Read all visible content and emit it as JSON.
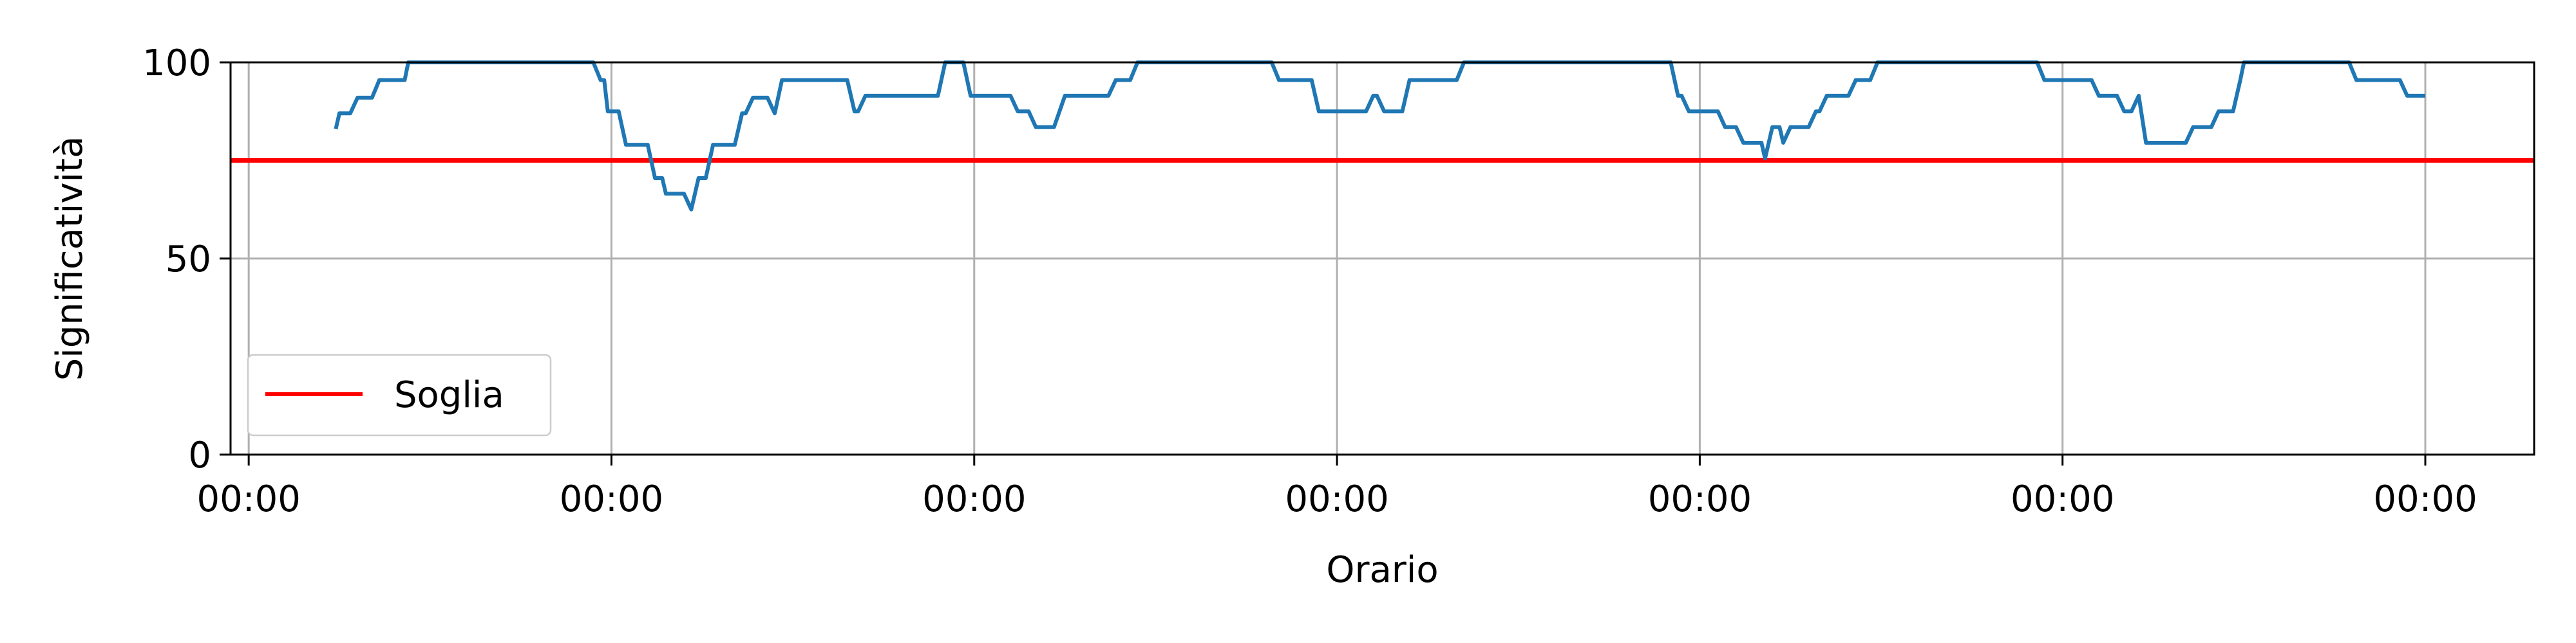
{
  "chart_data": {
    "type": "line",
    "title": "",
    "xlabel": "Orario",
    "ylabel": "Significatività",
    "ylim": [
      0,
      100
    ],
    "xlim": [
      -0.05,
      6.3
    ],
    "grid": true,
    "x_ticks": [
      {
        "value": 0,
        "label": "00:00"
      },
      {
        "value": 1,
        "label": "00:00"
      },
      {
        "value": 2,
        "label": "00:00"
      },
      {
        "value": 3,
        "label": "00:00"
      },
      {
        "value": 4,
        "label": "00:00"
      },
      {
        "value": 5,
        "label": "00:00"
      },
      {
        "value": 6,
        "label": "00:00"
      }
    ],
    "y_ticks": [
      {
        "value": 0,
        "label": "0"
      },
      {
        "value": 50,
        "label": "50"
      },
      {
        "value": 100,
        "label": "100"
      }
    ],
    "threshold": {
      "name": "Soglia",
      "value": 75,
      "color": "#ff0000"
    },
    "legend": {
      "position": "bottom-left",
      "entries": [
        "Soglia"
      ]
    },
    "series": [
      {
        "name": "Significatività",
        "color": "#1f77b4",
        "points": [
          [
            0.24,
            83
          ],
          [
            0.25,
            87
          ],
          [
            0.28,
            87
          ],
          [
            0.3,
            91
          ],
          [
            0.34,
            91
          ],
          [
            0.36,
            95.5
          ],
          [
            0.43,
            95.5
          ],
          [
            0.44,
            100
          ],
          [
            0.95,
            100
          ],
          [
            0.97,
            95.5
          ],
          [
            0.98,
            95.5
          ],
          [
            0.99,
            87.5
          ],
          [
            1.02,
            87.5
          ],
          [
            1.04,
            79
          ],
          [
            1.1,
            79
          ],
          [
            1.12,
            70.5
          ],
          [
            1.14,
            70.5
          ],
          [
            1.15,
            66.5
          ],
          [
            1.2,
            66.5
          ],
          [
            1.22,
            62.5
          ],
          [
            1.24,
            70.5
          ],
          [
            1.26,
            70.5
          ],
          [
            1.28,
            79
          ],
          [
            1.34,
            79
          ],
          [
            1.36,
            87
          ],
          [
            1.37,
            87
          ],
          [
            1.39,
            91
          ],
          [
            1.43,
            91
          ],
          [
            1.45,
            87
          ],
          [
            1.47,
            95.5
          ],
          [
            1.65,
            95.5
          ],
          [
            1.67,
            87.5
          ],
          [
            1.68,
            87.5
          ],
          [
            1.7,
            91.5
          ],
          [
            1.9,
            91.5
          ],
          [
            1.92,
            100
          ],
          [
            1.97,
            100
          ],
          [
            1.99,
            91.5
          ],
          [
            2.1,
            91.5
          ],
          [
            2.12,
            87.5
          ],
          [
            2.15,
            87.5
          ],
          [
            2.17,
            83.5
          ],
          [
            2.22,
            83.5
          ],
          [
            2.25,
            91.5
          ],
          [
            2.37,
            91.5
          ],
          [
            2.39,
            95.5
          ],
          [
            2.43,
            95.5
          ],
          [
            2.45,
            100
          ],
          [
            2.82,
            100
          ],
          [
            2.84,
            95.5
          ],
          [
            2.93,
            95.5
          ],
          [
            2.95,
            87.5
          ],
          [
            3.08,
            87.5
          ],
          [
            3.1,
            91.5
          ],
          [
            3.11,
            91.5
          ],
          [
            3.13,
            87.5
          ],
          [
            3.18,
            87.5
          ],
          [
            3.2,
            95.5
          ],
          [
            3.33,
            95.5
          ],
          [
            3.35,
            100
          ],
          [
            3.92,
            100
          ],
          [
            3.94,
            91.5
          ],
          [
            3.95,
            91.5
          ],
          [
            3.97,
            87.5
          ],
          [
            4.05,
            87.5
          ],
          [
            4.07,
            83.5
          ],
          [
            4.1,
            83.5
          ],
          [
            4.12,
            79.5
          ],
          [
            4.17,
            79.5
          ],
          [
            4.18,
            75.5
          ],
          [
            4.2,
            83.5
          ],
          [
            4.22,
            83.5
          ],
          [
            4.23,
            79.5
          ],
          [
            4.25,
            83.5
          ],
          [
            4.3,
            83.5
          ],
          [
            4.32,
            87.5
          ],
          [
            4.33,
            87.5
          ],
          [
            4.35,
            91.5
          ],
          [
            4.41,
            91.5
          ],
          [
            4.43,
            95.5
          ],
          [
            4.47,
            95.5
          ],
          [
            4.49,
            100
          ],
          [
            4.93,
            100
          ],
          [
            4.95,
            95.5
          ],
          [
            5.08,
            95.5
          ],
          [
            5.1,
            91.5
          ],
          [
            5.15,
            91.5
          ],
          [
            5.17,
            87.5
          ],
          [
            5.19,
            87.5
          ],
          [
            5.21,
            91.5
          ],
          [
            5.23,
            79.5
          ],
          [
            5.34,
            79.5
          ],
          [
            5.36,
            83.5
          ],
          [
            5.41,
            83.5
          ],
          [
            5.43,
            87.5
          ],
          [
            5.47,
            87.5
          ],
          [
            5.49,
            95.5
          ],
          [
            5.5,
            100
          ],
          [
            5.79,
            100
          ],
          [
            5.81,
            95.5
          ],
          [
            5.93,
            95.5
          ],
          [
            5.95,
            91.5
          ],
          [
            6.0,
            91.5
          ]
        ]
      }
    ]
  }
}
